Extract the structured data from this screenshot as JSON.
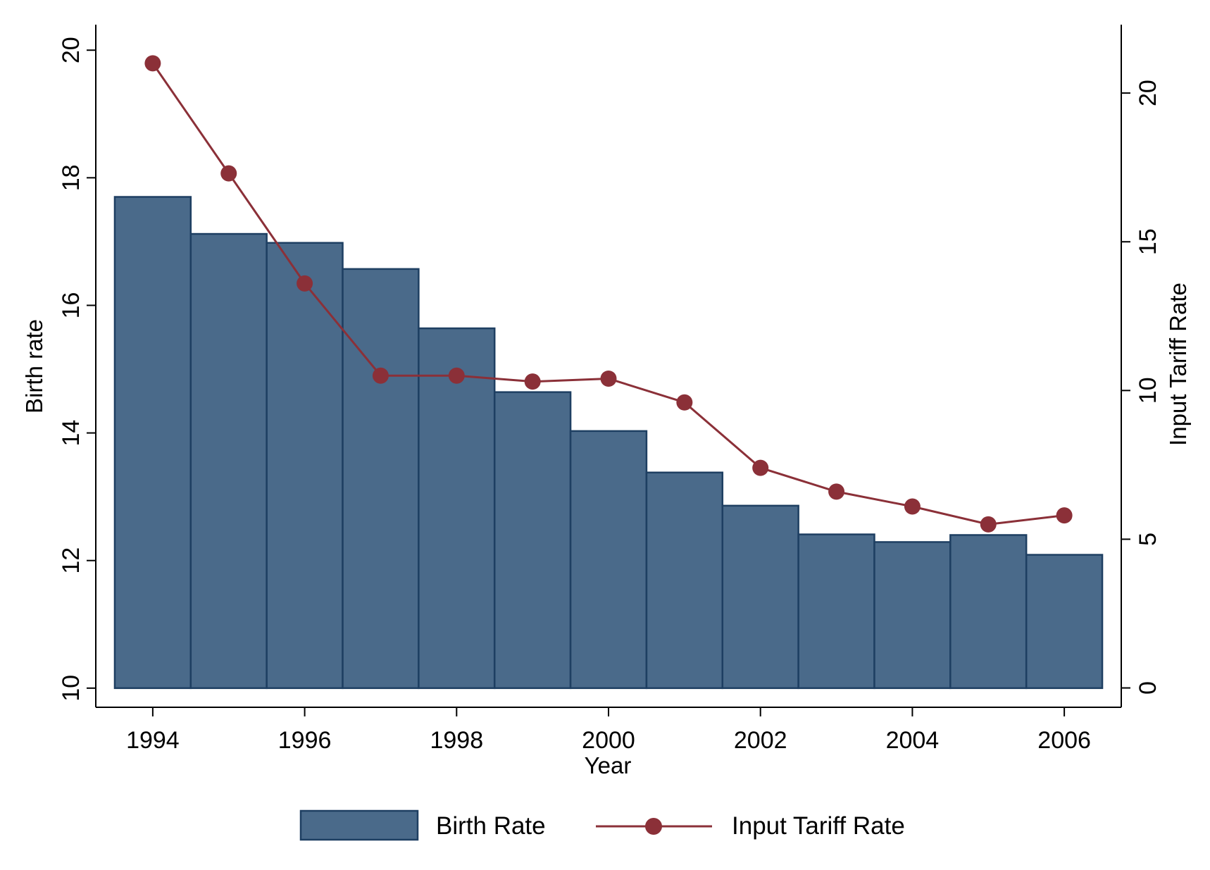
{
  "chart_data": {
    "type": "bar",
    "title": "",
    "xlabel": "Year",
    "ylabel": "Birth rate",
    "y2label": "Input Tariff Rate",
    "x": [
      1994,
      1995,
      1996,
      1997,
      1998,
      1999,
      2000,
      2001,
      2002,
      2003,
      2004,
      2005,
      2006
    ],
    "x_ticks": [
      1994,
      1996,
      1998,
      2000,
      2002,
      2004,
      2006
    ],
    "x_tick_labels": [
      "1994",
      "1996",
      "1998",
      "2000",
      "2002",
      "2004",
      "2006"
    ],
    "xlim": [
      1993.25,
      2006.75
    ],
    "ylim": [
      9.7,
      20.4
    ],
    "y_ticks": [
      10,
      12,
      14,
      16,
      18,
      20
    ],
    "y_tick_labels": [
      "10",
      "12",
      "14",
      "16",
      "18",
      "20"
    ],
    "y2lim": [
      -0.65,
      22.3
    ],
    "y2_ticks": [
      0,
      5,
      10,
      15,
      20
    ],
    "y2_tick_labels": [
      "0",
      "5",
      "10",
      "15",
      "20"
    ],
    "grid": false,
    "legend_position": "bottom-center",
    "series": [
      {
        "name": "Birth Rate",
        "type": "bar",
        "axis": "left",
        "color": "#4A6A8A",
        "edge_color": "#1E3F62",
        "values": [
          17.7,
          17.12,
          16.98,
          16.57,
          15.64,
          14.64,
          14.03,
          13.38,
          12.86,
          12.41,
          12.29,
          12.4,
          12.09
        ]
      },
      {
        "name": "Input Tariff Rate",
        "type": "line",
        "axis": "right",
        "color": "#8B3038",
        "marker": "circle",
        "values": [
          21.0,
          17.3,
          13.6,
          10.5,
          10.5,
          10.3,
          10.4,
          9.6,
          7.4,
          6.6,
          6.1,
          5.5,
          5.8
        ]
      }
    ]
  }
}
